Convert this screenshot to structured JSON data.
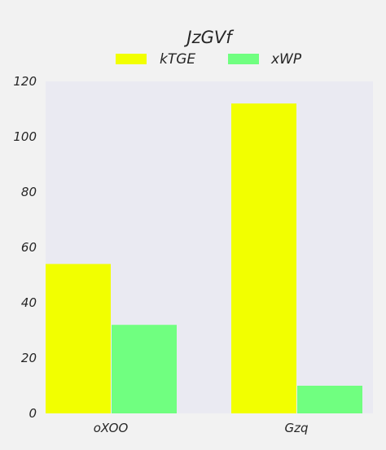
{
  "chart_data": {
    "type": "bar",
    "title": "JzGVf",
    "xlabel": "",
    "ylabel": "",
    "categories": [
      "oXOO",
      "Gzq"
    ],
    "series": [
      {
        "name": "kTGE",
        "values": [
          54,
          112
        ],
        "color": "#f2ff00"
      },
      {
        "name": "xWP",
        "values": [
          32,
          10
        ],
        "color": "#70ff80"
      }
    ],
    "ylim": [
      0,
      120
    ],
    "yticks": [
      0,
      20,
      40,
      60,
      80,
      100,
      120
    ],
    "grid": false,
    "legend": "top-center",
    "plot_background": "#eaeaf2",
    "page_background": "#f2f2f2"
  }
}
